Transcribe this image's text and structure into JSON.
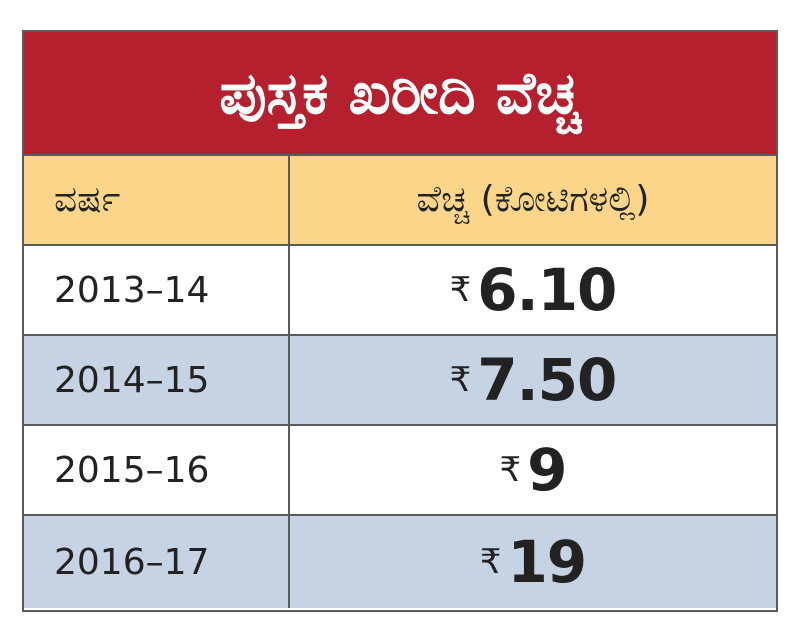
{
  "title": "ಪುಸ್ತಕ ಖರೀದಿ ವೆಚ್ಚ",
  "table": {
    "header": [
      "ವರ್ಷ",
      "ವೆಚ್ಚ (ಕೋಟಿಗಳಲ್ಲಿ)"
    ],
    "rows": [
      {
        "year": "2013–14",
        "currency": "₹",
        "amount": "6.10"
      },
      {
        "year": "2014–15",
        "currency": "₹",
        "amount": "7.50"
      },
      {
        "year": "2015–16",
        "currency": "₹",
        "amount": "9"
      },
      {
        "year": "2016–17",
        "currency": "₹",
        "amount": "19"
      }
    ]
  }
}
